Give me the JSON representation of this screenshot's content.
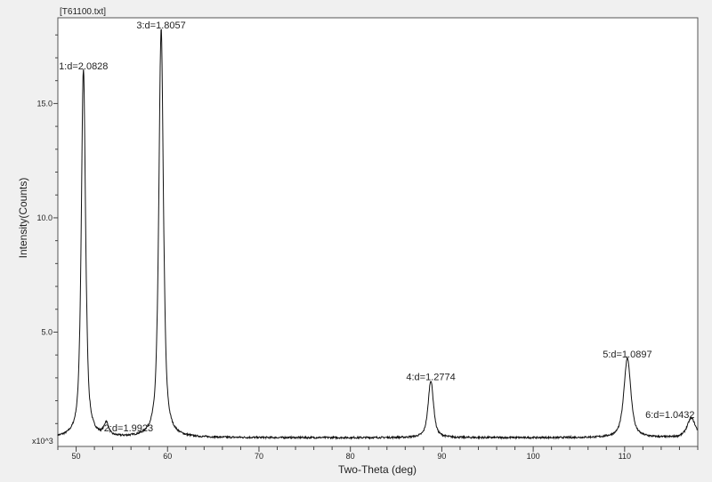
{
  "chart_data": {
    "type": "line",
    "file_label": "[T61100.txt]",
    "xlabel": "Two-Theta (deg)",
    "ylabel": "Intensity(Counts)",
    "y_multiplier_label": "x10^3",
    "xlim": [
      48,
      118
    ],
    "ylim": [
      0,
      18.75
    ],
    "x_ticks": [
      50,
      60,
      70,
      80,
      90,
      100,
      110
    ],
    "y_ticks": [
      5.0,
      10.0,
      15.0
    ],
    "grid": false,
    "background_level": 0.38,
    "peaks": [
      {
        "label": "1:d=2.0828",
        "two_theta": 50.8,
        "intensity": 16.1,
        "width": 0.28
      },
      {
        "label": "2:d=1.9923",
        "two_theta": 53.3,
        "intensity": 0.55,
        "width": 0.3
      },
      {
        "label": "3:d=1.8057",
        "two_theta": 59.3,
        "intensity": 17.9,
        "width": 0.3
      },
      {
        "label": "4:d=1.2774",
        "two_theta": 88.8,
        "intensity": 2.5,
        "width": 0.35
      },
      {
        "label": "5:d=1.0897",
        "two_theta": 110.3,
        "intensity": 3.5,
        "width": 0.45
      },
      {
        "label": "6:d=1.0432",
        "two_theta": 117.3,
        "intensity": 0.85,
        "width": 0.55
      }
    ]
  }
}
